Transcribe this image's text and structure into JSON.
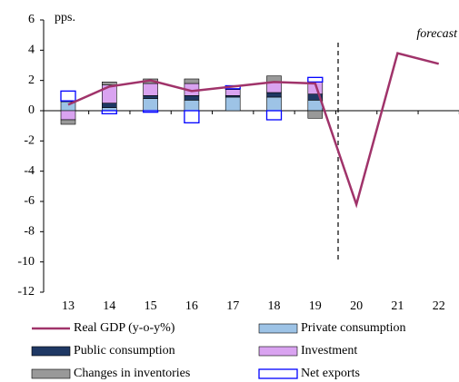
{
  "chart_data": {
    "type": "bar-line",
    "categories": [
      "13",
      "14",
      "15",
      "16",
      "17",
      "18",
      "19",
      "20",
      "21",
      "22"
    ],
    "y_label": "pps.",
    "annotation": "forecast",
    "ylim": [
      -12,
      6
    ],
    "yticks": [
      -12,
      -10,
      -8,
      -6,
      -4,
      -2,
      0,
      2,
      4,
      6
    ],
    "series": [
      {
        "name": "Real GDP (y-o-y%)",
        "kind": "line",
        "color": "#a0336a",
        "values": [
          0.4,
          1.6,
          2.0,
          1.3,
          1.6,
          1.9,
          1.8,
          -6.2,
          3.8,
          3.1
        ]
      },
      {
        "name": "Private consumption",
        "kind": "bar",
        "color": "#9dc3e6",
        "values": [
          0.6,
          0.2,
          0.8,
          0.7,
          0.9,
          0.9,
          0.7,
          null,
          null,
          null
        ]
      },
      {
        "name": "Public consumption",
        "kind": "bar",
        "color": "#1f3864",
        "values": [
          0.05,
          0.3,
          0.2,
          0.3,
          0.1,
          0.3,
          0.4,
          null,
          null,
          null
        ]
      },
      {
        "name": "Investment",
        "kind": "bar",
        "color": "#d9a3f0",
        "values": [
          -0.6,
          1.2,
          0.8,
          0.8,
          0.4,
          0.7,
          0.8,
          null,
          null,
          null
        ]
      },
      {
        "name": "Changes in inventories",
        "kind": "bar",
        "color": "#999999",
        "values": [
          -0.3,
          0.2,
          0.3,
          0.3,
          0.05,
          0.4,
          -0.5,
          null,
          null,
          null
        ]
      },
      {
        "name": "Net exports",
        "kind": "bar",
        "color": "#0000ff",
        "outline": true,
        "values": [
          0.65,
          -0.2,
          -0.1,
          -0.8,
          0.2,
          -0.6,
          0.3,
          null,
          null,
          null
        ]
      }
    ]
  }
}
